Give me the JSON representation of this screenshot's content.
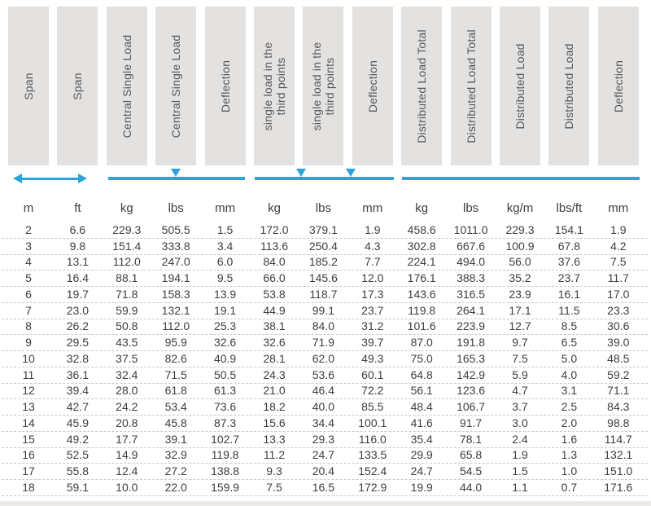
{
  "colors": {
    "accent": "#2aa4dd",
    "header_bg": "#e3e2e0",
    "header_text": "#57585a",
    "data_text": "#3d3e40",
    "divider": "#c9c9c9"
  },
  "indicators": {
    "span": "double-headed-arrow",
    "central_single_load": "line-with-center-down-arrow",
    "third_points_load": "line-with-two-down-arrows",
    "distributed_load": "plain-line"
  },
  "table": {
    "headers": [
      "Span",
      "Span",
      "Central Single Load",
      "Central Single Load",
      "Deflection",
      "single load in the\nthird points",
      "single load in the\nthird points",
      "Deflection",
      "Distributed Load Total",
      "Distributed Load Total",
      "Distributed Load",
      "Distributed Load",
      "Deflection"
    ],
    "units": [
      "m",
      "ft",
      "kg",
      "lbs",
      "mm",
      "kg",
      "lbs",
      "mm",
      "kg",
      "lbs",
      "kg/m",
      "lbs/ft",
      "mm"
    ],
    "rows": [
      [
        "2",
        "6.6",
        "229.3",
        "505.5",
        "1.5",
        "172.0",
        "379.1",
        "1.9",
        "458.6",
        "1011.0",
        "229.3",
        "154.1",
        "1.9"
      ],
      [
        "3",
        "9.8",
        "151.4",
        "333.8",
        "3.4",
        "113.6",
        "250.4",
        "4.3",
        "302.8",
        "667.6",
        "100.9",
        "67.8",
        "4.2"
      ],
      [
        "4",
        "13.1",
        "112.0",
        "247.0",
        "6.0",
        "84.0",
        "185.2",
        "7.7",
        "224.1",
        "494.0",
        "56.0",
        "37.6",
        "7.5"
      ],
      [
        "5",
        "16.4",
        "88.1",
        "194.1",
        "9.5",
        "66.0",
        "145.6",
        "12.0",
        "176.1",
        "388.3",
        "35.2",
        "23.7",
        "11.7"
      ],
      [
        "6",
        "19.7",
        "71.8",
        "158.3",
        "13.9",
        "53.8",
        "118.7",
        "17.3",
        "143.6",
        "316.5",
        "23.9",
        "16.1",
        "17.0"
      ],
      [
        "7",
        "23.0",
        "59.9",
        "132.1",
        "19.1",
        "44.9",
        "99.1",
        "23.7",
        "119.8",
        "264.1",
        "17.1",
        "11.5",
        "23.3"
      ],
      [
        "8",
        "26.2",
        "50.8",
        "112.0",
        "25.3",
        "38.1",
        "84.0",
        "31.2",
        "101.6",
        "223.9",
        "12.7",
        "8.5",
        "30.6"
      ],
      [
        "9",
        "29.5",
        "43.5",
        "95.9",
        "32.6",
        "32.6",
        "71.9",
        "39.7",
        "87.0",
        "191.8",
        "9.7",
        "6.5",
        "39.0"
      ],
      [
        "10",
        "32.8",
        "37.5",
        "82.6",
        "40.9",
        "28.1",
        "62.0",
        "49.3",
        "75.0",
        "165.3",
        "7.5",
        "5.0",
        "48.5"
      ],
      [
        "11",
        "36.1",
        "32.4",
        "71.5",
        "50.5",
        "24.3",
        "53.6",
        "60.1",
        "64.8",
        "142.9",
        "5.9",
        "4.0",
        "59.2"
      ],
      [
        "12",
        "39.4",
        "28.0",
        "61.8",
        "61.3",
        "21.0",
        "46.4",
        "72.2",
        "56.1",
        "123.6",
        "4.7",
        "3.1",
        "71.1"
      ],
      [
        "13",
        "42.7",
        "24.2",
        "53.4",
        "73.6",
        "18.2",
        "40.0",
        "85.5",
        "48.4",
        "106.7",
        "3.7",
        "2.5",
        "84.3"
      ],
      [
        "14",
        "45.9",
        "20.8",
        "45.8",
        "87.3",
        "15.6",
        "34.4",
        "100.1",
        "41.6",
        "91.7",
        "3.0",
        "2.0",
        "98.8"
      ],
      [
        "15",
        "49.2",
        "17.7",
        "39.1",
        "102.7",
        "13.3",
        "29.3",
        "116.0",
        "35.4",
        "78.1",
        "2.4",
        "1.6",
        "114.7"
      ],
      [
        "16",
        "52.5",
        "14.9",
        "32.9",
        "119.8",
        "11.2",
        "24.7",
        "133.5",
        "29.9",
        "65.8",
        "1.9",
        "1.3",
        "132.1"
      ],
      [
        "17",
        "55.8",
        "12.4",
        "27.2",
        "138.8",
        "9.3",
        "20.4",
        "152.4",
        "24.7",
        "54.5",
        "1.5",
        "1.0",
        "151.0"
      ],
      [
        "18",
        "59.1",
        "10.0",
        "22.0",
        "159.9",
        "7.5",
        "16.5",
        "172.9",
        "19.9",
        "44.0",
        "1.1",
        "0.7",
        "171.6"
      ]
    ]
  }
}
